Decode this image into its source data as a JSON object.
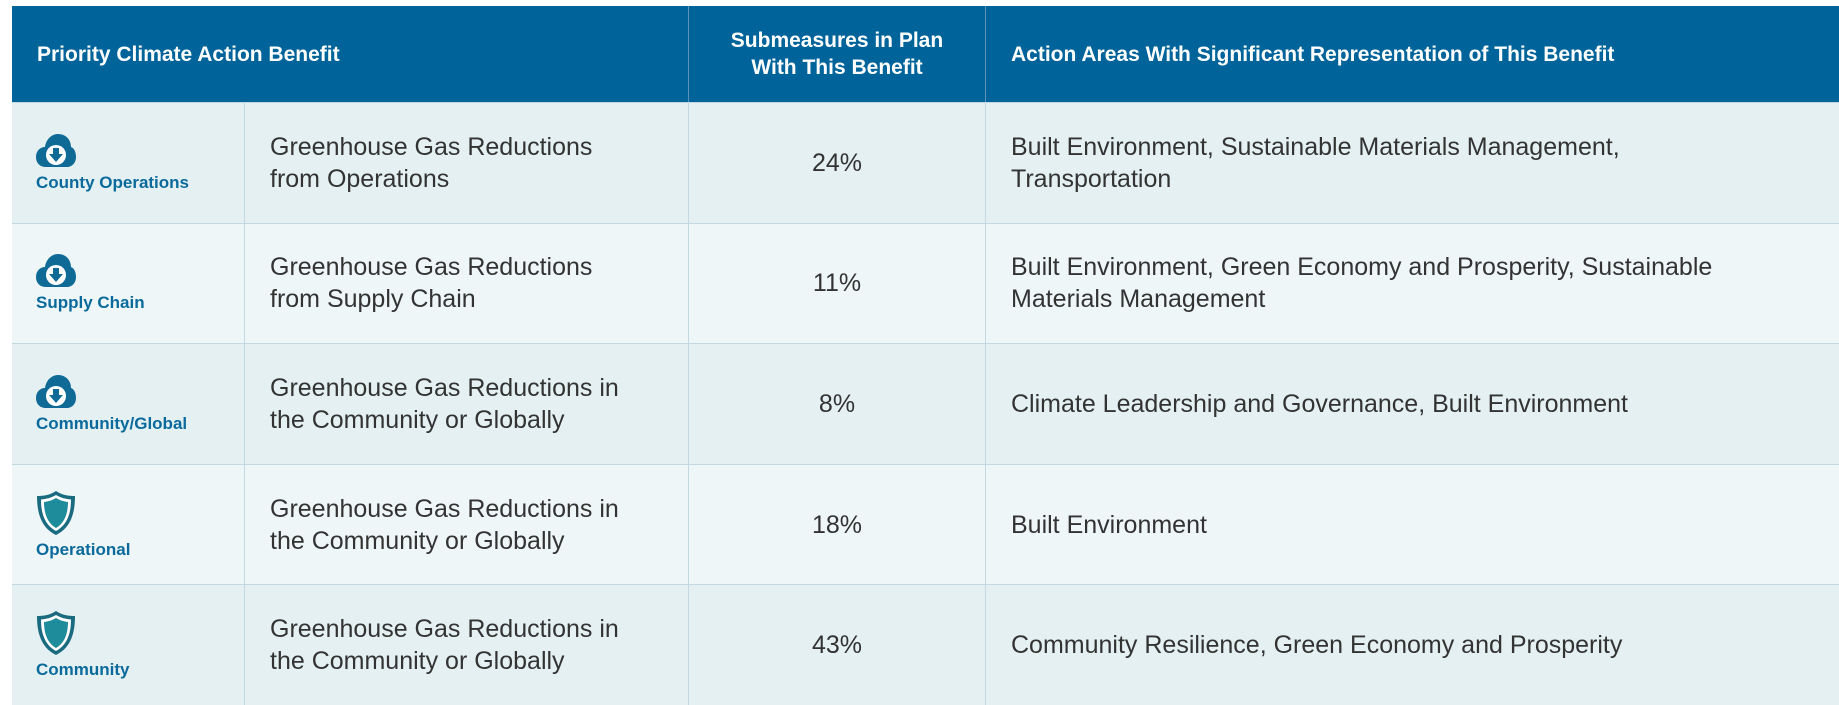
{
  "table": {
    "header": [
      "Priority Climate Action Benefit",
      "Submeasures in Plan With This Benefit",
      "Action Areas With Significant Representation of This Benefit"
    ],
    "rows": [
      {
        "tag": "County Operations",
        "benefit": "Greenhouse Gas Reductions from Operations",
        "share": "24%",
        "areas": "Built Environment, Sustainable Materials Management, Transportation"
      },
      {
        "tag": "Supply Chain",
        "benefit": "Greenhouse Gas Reductions from Supply Chain",
        "share": "11%",
        "areas": "Built Environment, Green Economy and Prosperity, Sustainable Materials Management"
      },
      {
        "tag": "Community/Global",
        "benefit": "Greenhouse Gas Reductions in the Community or Globally",
        "share": "8%",
        "areas": "Climate Leadership and Governance, Built Environment"
      },
      {
        "tag": "Operational",
        "benefit": "Greenhouse Gas Reductions in the Community or Globally",
        "share": "18%",
        "areas": "Built Environment"
      },
      {
        "tag": "Community",
        "benefit": "Greenhouse Gas Reductions in the Community or Globally",
        "share": "43%",
        "areas": "Community Resilience, Green Economy and Prosperity"
      }
    ]
  }
}
